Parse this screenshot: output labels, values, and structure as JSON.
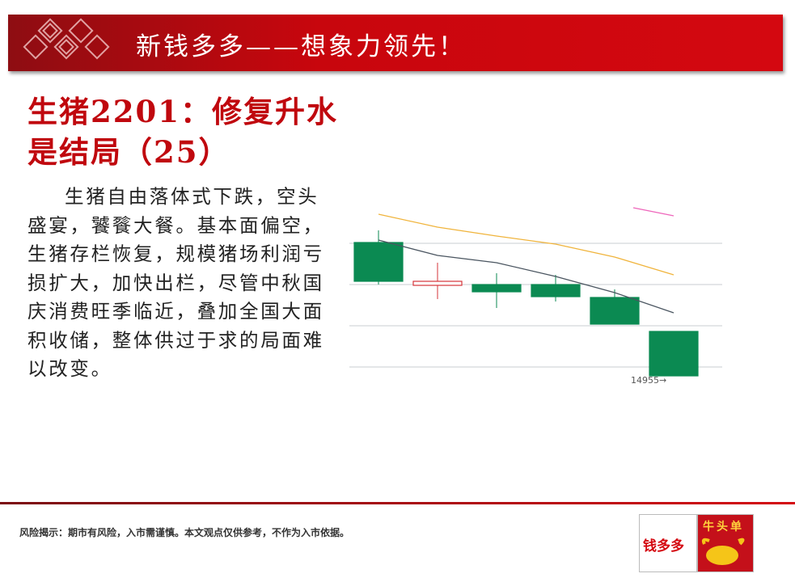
{
  "header": {
    "title": "新钱多多——想象力领先！"
  },
  "title_lines": [
    "生猪2201：修复升水",
    "是结局（25）"
  ],
  "body_lines": [
    "生猪自由落体式下跌，空头",
    "盛宴，饕餮大餐。基本面偏空，",
    "生猪存栏恢复，规模猪场利润亏",
    "损扩大，加快出栏，尽管中秋国",
    "庆消费旺季临近，叠加全国大面",
    "积收储，整体供过于求的局面难",
    "以改变。"
  ],
  "chart_data": {
    "type": "candlestick",
    "open": [
      16605,
      16075,
      16085,
      16085,
      15925,
      15505
    ],
    "high": [
      16755,
      16355,
      16225,
      16205,
      16025,
      15505
    ],
    "low": [
      16085,
      15905,
      15795,
      15875,
      15595,
      14955
    ],
    "close": [
      16125,
      16125,
      15995,
      15935,
      15595,
      14955
    ],
    "up_color": "#d6343a",
    "down_color": "#0b8a52",
    "lines": [
      {
        "color": "#f0b43c",
        "values": [
          16955,
          16795,
          16685,
          16585,
          16425,
          16205
        ]
      },
      {
        "color": "#4a5560",
        "values": [
          16635,
          16445,
          16355,
          16185,
          15985,
          15735
        ]
      }
    ],
    "ylim": [
      14855,
      17155
    ],
    "annotation": "14955→"
  },
  "disclaimer": "风险揭示：期市有风险，入市需谨慎。本文观点仅供参考，不作为入市依据。",
  "logos": {
    "left": "钱多多",
    "right": "牛头单"
  }
}
